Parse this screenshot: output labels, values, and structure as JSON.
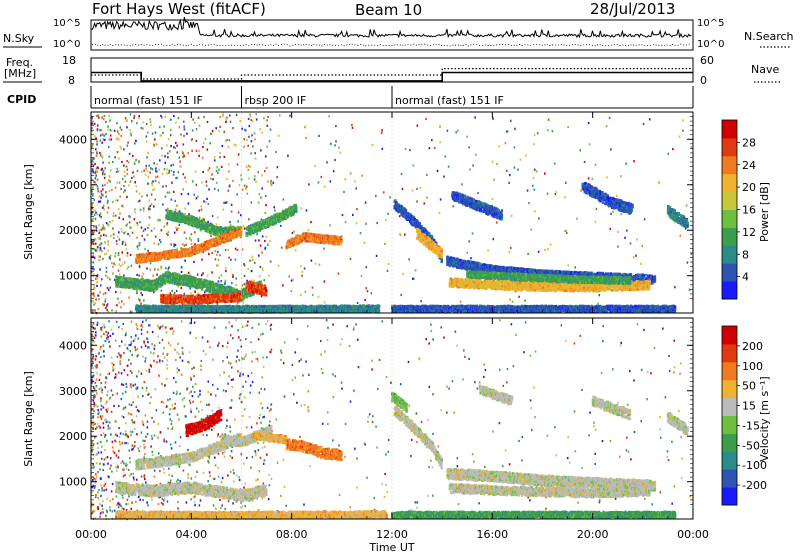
{
  "header": {
    "station": "Fort Hays West (fitACF)",
    "beam": "Beam 10",
    "date": "28/Jul/2013"
  },
  "strip_panels": {
    "nsky": {
      "label": "N.Sky",
      "right_label": "N.Search",
      "left_ticks": [
        "10^5",
        "10^0"
      ],
      "right_ticks": [
        "10^5",
        "10^0"
      ],
      "log_scale": true
    },
    "freq": {
      "label": "Freq.",
      "unit": "[MHz]",
      "right_label": "Nave",
      "left_ticks": [
        "18",
        "8"
      ],
      "right_ticks": [
        "60",
        "0"
      ],
      "freq_trace": {
        "x": [
          0,
          2,
          2,
          14,
          14,
          24
        ],
        "y": [
          12.8,
          12.8,
          9.3,
          9.3,
          12.8,
          12.8
        ]
      },
      "nave_trace": {
        "x": [
          0,
          2,
          2,
          6,
          6,
          14,
          14,
          24
        ],
        "y": [
          20,
          20,
          10,
          10,
          20,
          20,
          36,
          36
        ]
      }
    },
    "cpid": {
      "label": "CPID",
      "segments": [
        {
          "start": 0,
          "end": 6,
          "text": "normal (fast) 151 IF"
        },
        {
          "start": 6,
          "end": 12,
          "text": "rbsp 200 IF"
        },
        {
          "start": 12,
          "end": 24,
          "text": "normal (fast) 151 IF"
        }
      ]
    }
  },
  "chart_data": [
    {
      "type": "heatmap",
      "name": "power",
      "ylabel": "Slant Range [km]",
      "xlim": [
        0,
        24
      ],
      "ylim": [
        180,
        4600
      ],
      "y_ticks": [
        1000,
        2000,
        3000,
        4000
      ],
      "colorbar": {
        "label": "Power [dB]",
        "ticks": [
          "4",
          "8",
          "12",
          "16",
          "20",
          "24",
          "28"
        ],
        "colors": [
          "#1a1aff",
          "#2b54b3",
          "#2b8a8a",
          "#3c9e4a",
          "#6fbf3f",
          "#c8c83a",
          "#f0b030",
          "#f07a20",
          "#e03a10",
          "#d00000"
        ]
      },
      "features": [
        {
          "t": [
            3.0,
            4.0,
            5.0,
            6.0
          ],
          "r": [
            2380,
            2240,
            2010,
            2000
          ],
          "w": 120,
          "color": "#3c9e4a"
        },
        {
          "t": [
            6.2,
            7.0,
            8.0,
            8.2
          ],
          "r": [
            2000,
            2180,
            2450,
            2500
          ],
          "w": 120,
          "color": "#3c9e4a"
        },
        {
          "t": [
            1.8,
            3.0,
            4.0,
            5.0,
            6.0
          ],
          "r": [
            1400,
            1480,
            1560,
            1780,
            2000
          ],
          "w": 110,
          "color": "#f07a20"
        },
        {
          "t": [
            7.8,
            8.5,
            9.2,
            10.0
          ],
          "r": [
            1720,
            1880,
            1830,
            1800
          ],
          "w": 110,
          "color": "#f07a20"
        },
        {
          "t": [
            1.0,
            2.5,
            3.0,
            4.0,
            6.0,
            6.8
          ],
          "r": [
            900,
            800,
            1000,
            900,
            600,
            820
          ],
          "w": 140,
          "color": "#3c9e4a"
        },
        {
          "t": [
            6.2,
            7.0
          ],
          "r": [
            800,
            700
          ],
          "w": 140,
          "color": "#e03a10"
        },
        {
          "t": [
            2.8,
            4.0,
            6.0
          ],
          "r": [
            520,
            500,
            560
          ],
          "w": 110,
          "color": "#e03a10"
        },
        {
          "t": [
            1.8,
            6.0,
            11.5
          ],
          "r": [
            300,
            290,
            300
          ],
          "w": 90,
          "color": "#2b8a8a"
        },
        {
          "t": [
            12.1,
            12.8,
            13.6,
            14.0
          ],
          "r": [
            2600,
            2250,
            1800,
            1400
          ],
          "w": 120,
          "color": "#2b54b3"
        },
        {
          "t": [
            13.0,
            14.0
          ],
          "r": [
            1950,
            1500
          ],
          "w": 140,
          "color": "#f0b030"
        },
        {
          "t": [
            14.2,
            16.0,
            18.0,
            20.0,
            22.5
          ],
          "r": [
            1350,
            1150,
            1050,
            1000,
            940
          ],
          "w": 120,
          "color": "#2b54b3"
        },
        {
          "t": [
            14.3,
            17.0,
            20.0,
            22.3
          ],
          "r": [
            880,
            800,
            780,
            820
          ],
          "w": 120,
          "color": "#f0b030"
        },
        {
          "t": [
            15.0,
            17.0,
            19.0,
            21.5
          ],
          "r": [
            1060,
            1000,
            950,
            920
          ],
          "w": 90,
          "color": "#3c9e4a"
        },
        {
          "t": [
            14.4,
            15.5,
            16.4
          ],
          "r": [
            2800,
            2550,
            2350
          ],
          "w": 130,
          "color": "#2b54b3"
        },
        {
          "t": [
            19.6,
            20.7,
            21.6
          ],
          "r": [
            3000,
            2650,
            2480
          ],
          "w": 140,
          "color": "#2b54b3"
        },
        {
          "t": [
            23.0,
            23.8
          ],
          "r": [
            2450,
            2150
          ],
          "w": 140,
          "color": "#2b8a8a"
        },
        {
          "t": [
            12.0,
            18.0,
            23.3
          ],
          "r": [
            300,
            300,
            300
          ],
          "w": 80,
          "color": "#2b54b3"
        }
      ]
    },
    {
      "type": "heatmap",
      "name": "velocity",
      "ylabel": "Slant Range [km]",
      "xlabel": "Time UT",
      "xlim": [
        0,
        24
      ],
      "ylim": [
        180,
        4600
      ],
      "x_ticks": [
        "00:00",
        "04:00",
        "08:00",
        "12:00",
        "16:00",
        "20:00",
        "00:00"
      ],
      "y_ticks": [
        1000,
        2000,
        3000,
        4000
      ],
      "colorbar": {
        "label": "Velocity [m s⁻¹]",
        "ticks": [
          "200",
          "100",
          "50",
          "15",
          "-15",
          "-50",
          "-100",
          "-200"
        ],
        "colors": [
          "#1a1aff",
          "#2b54b3",
          "#2b8a8a",
          "#3c9e4a",
          "#6fbf3f",
          "#bbbbbb",
          "#f0b030",
          "#f07a20",
          "#e03a10",
          "#d00000"
        ]
      },
      "features": [
        {
          "t": [
            3.8,
            4.6,
            5.2
          ],
          "r": [
            2150,
            2300,
            2500
          ],
          "w": 150,
          "color": "#d00000"
        },
        {
          "t": [
            5.2,
            6.0,
            7.2
          ],
          "r": [
            1950,
            1900,
            2150
          ],
          "w": 130,
          "color": "#bbbbbb"
        },
        {
          "t": [
            1.8,
            3.0,
            4.0,
            5.0,
            6.0
          ],
          "r": [
            1400,
            1480,
            1560,
            1780,
            2000
          ],
          "w": 130,
          "color": "#bbbbbb"
        },
        {
          "t": [
            7.8,
            8.5,
            9.3,
            10.0
          ],
          "r": [
            1850,
            1800,
            1650,
            1620
          ],
          "w": 140,
          "color": "#f07a20"
        },
        {
          "t": [
            6.5,
            7.8
          ],
          "r": [
            2050,
            1950
          ],
          "w": 100,
          "color": "#f0b030"
        },
        {
          "t": [
            1.0,
            2.5,
            4.0,
            6.0,
            7.0
          ],
          "r": [
            900,
            820,
            900,
            720,
            840
          ],
          "w": 150,
          "color": "#bbbbbb"
        },
        {
          "t": [
            1.0,
            6.0,
            11.8
          ],
          "r": [
            300,
            290,
            310
          ],
          "w": 90,
          "color": "#f0b030"
        },
        {
          "t": [
            12.1,
            12.8,
            13.6,
            14.0
          ],
          "r": [
            2600,
            2250,
            1800,
            1400
          ],
          "w": 130,
          "color": "#bbbbbb"
        },
        {
          "t": [
            12.0,
            12.6
          ],
          "r": [
            2900,
            2650
          ],
          "w": 120,
          "color": "#6fbf3f"
        },
        {
          "t": [
            14.2,
            16.0,
            18.0,
            20.0,
            22.5
          ],
          "r": [
            1200,
            1150,
            1050,
            1000,
            940
          ],
          "w": 140,
          "color": "#bbbbbb"
        },
        {
          "t": [
            14.3,
            17.0,
            20.0,
            22.3
          ],
          "r": [
            880,
            820,
            780,
            820
          ],
          "w": 120,
          "color": "#bbbbbb"
        },
        {
          "t": [
            15.5,
            16.8
          ],
          "r": [
            3050,
            2800
          ],
          "w": 120,
          "color": "#bbbbbb"
        },
        {
          "t": [
            20.0,
            21.5
          ],
          "r": [
            2800,
            2500
          ],
          "w": 130,
          "color": "#bbbbbb"
        },
        {
          "t": [
            23.0,
            23.8
          ],
          "r": [
            2450,
            2150
          ],
          "w": 140,
          "color": "#bbbbbb"
        },
        {
          "t": [
            12.0,
            18.0,
            23.3
          ],
          "r": [
            300,
            300,
            300
          ],
          "w": 80,
          "color": "#3c9e4a"
        }
      ]
    }
  ]
}
